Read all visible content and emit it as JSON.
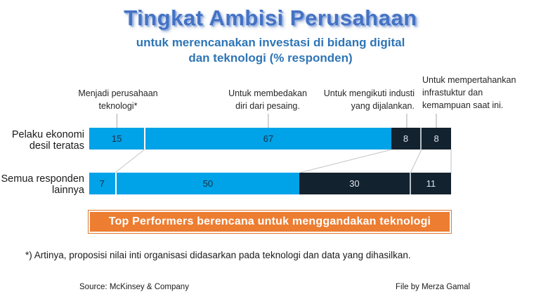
{
  "slide": {
    "title": "Tingkat Ambisi Perusahaan",
    "subtitle_lines": [
      "untuk merencanakan investasi di bidang digital",
      "dan teknologi (% responden)"
    ],
    "banner_text": "Top Performers berencana untuk menggandakan teknologi",
    "footnote": "*) Artinya, proposisi nilai inti organisasi didasarkan pada teknologi dan data yang dihasilkan.",
    "source": "Source: McKinsey & Company",
    "credit": "File by Merza Gamal"
  },
  "column_labels": [
    {
      "lines": [
        "Menjadi perusahaan",
        "teknologi*"
      ]
    },
    {
      "lines": [
        "Untuk membedakan",
        "diri dari pesaing."
      ]
    },
    {
      "lines": [
        "Untuk mengikuti industi",
        "yang dijalankan."
      ]
    },
    {
      "lines": [
        "Untuk mempertahankan",
        "infrastuktur dan",
        "kemampuan saat ini."
      ]
    }
  ],
  "row_labels": [
    {
      "lines": [
        "Pelaku ekonomi",
        "desil teratas"
      ]
    },
    {
      "lines": [
        "Semua responden",
        "lainnya"
      ]
    }
  ],
  "chart_data": {
    "type": "bar",
    "orientation": "horizontal",
    "stacked": true,
    "title": "Tingkat Ambisi Perusahaan untuk merencanakan investasi di bidang digital dan teknologi (% responden)",
    "categories": [
      "Pelaku ekonomi desil teratas",
      "Semua responden lainnya"
    ],
    "series": [
      {
        "name": "Menjadi perusahaan teknologi*",
        "values": [
          15,
          7
        ],
        "color": "#00A2E8"
      },
      {
        "name": "Untuk membedakan diri dari pesaing.",
        "values": [
          67,
          50
        ],
        "color": "#00A2E8"
      },
      {
        "name": "Untuk mengikuti industi yang dijalankan.",
        "values": [
          8,
          30
        ],
        "color": "#13222F"
      },
      {
        "name": "Untuk mempertahankan infrastuktur dan kemampuan saat ini.",
        "values": [
          8,
          11
        ],
        "color": "#13222F"
      }
    ],
    "xlim": [
      0,
      98
    ],
    "legend": false,
    "grid": false
  },
  "colors": {
    "segment_blue": "#00A2E8",
    "segment_dark": "#13222F",
    "value_text_on_blue": "#1F2D3D",
    "value_text_on_dark": "#DEE4EA",
    "title_blue": "#4472C4",
    "subtitle_blue": "#2E75B6",
    "banner_orange": "#ED7D31",
    "leader_line_gray": "#A6A6A6",
    "connector_gray": "#C3C3C3"
  }
}
